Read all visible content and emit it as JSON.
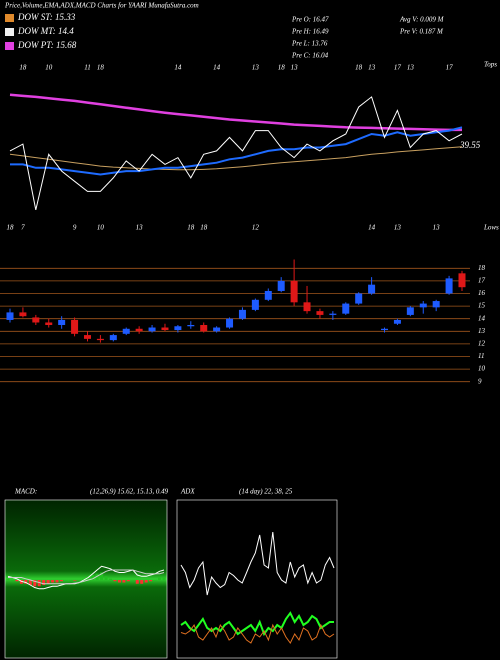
{
  "header": {
    "title": "Price,Volume,EMA,ADX,MACD Charts for YAARI MunafaSutra.com",
    "legend": [
      {
        "label": "DOW ST: 15.33",
        "color": "#e08a2c"
      },
      {
        "label": "DOW MT: 14.4",
        "color": "#f0f0f0"
      },
      {
        "label": "DOW PT: 15.68",
        "color": "#e040e0"
      }
    ],
    "stats": [
      "Pre   O: 16.47",
      "Pre   H: 16.49",
      "Pre   L: 13.76",
      "Pre   C: 16.04",
      "Avg V: 0.009 M",
      "Pre   V: 0.187 M"
    ]
  },
  "chart_data": [
    {
      "type": "line",
      "categories": [
        null,
        "18",
        null,
        "10",
        null,
        null,
        "11",
        "18",
        null,
        null,
        null,
        null,
        null,
        "14",
        null,
        null,
        "14",
        null,
        null,
        "13",
        null,
        "18",
        "13",
        null,
        null,
        null,
        null,
        "18",
        "13",
        null,
        "17",
        "13",
        null,
        null,
        "17",
        null
      ],
      "bottom_categories": [
        "18",
        "7",
        null,
        null,
        null,
        "9",
        null,
        "10",
        null,
        null,
        "13",
        null,
        null,
        null,
        "18",
        "18",
        null,
        null,
        null,
        "12",
        null,
        null,
        null,
        null,
        null,
        null,
        null,
        null,
        "14",
        null,
        "13",
        null,
        null,
        "13",
        null,
        null
      ],
      "top_note": "Tops",
      "bottom_note": "Lows",
      "price_note": "39.55",
      "ylim": [
        20,
        60
      ],
      "series": [
        {
          "color": "#e040e0",
          "width": 2.5,
          "values": [
            55.6,
            55.3,
            55,
            54.6,
            54.2,
            53.8,
            53.3,
            52.8,
            52.3,
            51.8,
            51.3,
            50.8,
            50.3,
            49.9,
            49.5,
            49.1,
            48.7,
            48.3,
            48,
            47.7,
            47.4,
            47.1,
            46.8,
            46.6,
            46.4,
            46.2,
            46,
            45.9,
            45.8,
            45.7,
            45.6,
            45.5,
            45.4,
            45.3,
            45.2,
            45.2
          ]
        },
        {
          "color": "#c8a060",
          "width": 1,
          "values": [
            38,
            37.5,
            37,
            36.5,
            36,
            35.5,
            35,
            34.5,
            34.2,
            34,
            33.8,
            33.6,
            33.5,
            33.4,
            33.4,
            33.5,
            33.7,
            34,
            34.3,
            34.7,
            35.1,
            35.5,
            35.8,
            36.1,
            36.4,
            36.7,
            37,
            37.5,
            38,
            38.3,
            38.7,
            39,
            39.3,
            39.6,
            39.9,
            40.2
          ]
        },
        {
          "color": "#1e6bff",
          "width": 2,
          "values": [
            35,
            35,
            34,
            34,
            33.5,
            33,
            32.5,
            32,
            32.5,
            33,
            33,
            33.5,
            34,
            34,
            34.5,
            35,
            35.5,
            36.5,
            37,
            38,
            39,
            39.5,
            39.5,
            40,
            40,
            40.5,
            41,
            42.5,
            44,
            43.5,
            44.5,
            43.5,
            44,
            44.5,
            45,
            46
          ]
        },
        {
          "color": "#ffffff",
          "width": 1,
          "values": [
            39,
            41,
            21.5,
            38,
            33,
            30,
            27,
            27,
            31,
            36,
            33,
            38,
            35,
            37,
            31,
            38,
            39,
            43,
            39,
            45,
            45,
            40,
            37,
            41,
            39,
            42,
            44,
            52,
            55,
            43,
            51,
            40,
            44,
            45,
            42,
            44
          ]
        }
      ]
    },
    {
      "type": "candlestick",
      "ylim": [
        8.5,
        18.5
      ],
      "yticks": [
        9,
        10,
        11,
        12,
        13,
        14,
        15,
        16,
        17,
        18
      ],
      "grid": true,
      "grid_color": "#a0561c",
      "up_color": "#1e5bff",
      "down_color": "#e01818",
      "open": [
        13.9,
        14.5,
        14.1,
        13.7,
        13.5,
        13.9,
        12.7,
        12.4,
        12.3,
        12.8,
        13.2,
        13.0,
        13.3,
        13.1,
        13.4,
        13.5,
        13.0,
        13.3,
        14.0,
        14.7,
        15.5,
        16.2,
        17.0,
        15.3,
        14.6,
        14.3,
        14.4,
        15.2,
        16.0,
        13.1,
        13.6,
        14.3,
        14.9,
        14.9,
        16.0,
        17.6
      ],
      "high": [
        14.8,
        14.9,
        14.3,
        14.0,
        14.2,
        14.1,
        13.0,
        12.7,
        12.8,
        13.3,
        13.4,
        13.5,
        13.6,
        13.5,
        13.8,
        13.7,
        13.4,
        14.1,
        14.9,
        15.6,
        16.4,
        17.3,
        18.7,
        16.6,
        14.8,
        14.6,
        15.3,
        16.1,
        17.3,
        13.3,
        14.0,
        15.0,
        15.4,
        15.5,
        17.4,
        17.8
      ],
      "low": [
        13.7,
        14.1,
        13.5,
        13.3,
        13.2,
        12.6,
        12.2,
        12.1,
        12.2,
        12.7,
        12.8,
        12.9,
        13.0,
        12.9,
        13.2,
        12.9,
        12.9,
        13.2,
        13.9,
        14.6,
        15.4,
        16.1,
        15.0,
        14.4,
        14.0,
        13.9,
        14.3,
        15.1,
        15.9,
        12.9,
        13.5,
        14.2,
        14.4,
        14.6,
        15.9,
        16.2
      ],
      "close": [
        14.5,
        14.2,
        13.7,
        13.5,
        13.9,
        12.8,
        12.4,
        12.3,
        12.7,
        13.2,
        13.0,
        13.3,
        13.1,
        13.4,
        13.5,
        13.0,
        13.3,
        14.0,
        14.7,
        15.5,
        16.2,
        17.0,
        15.3,
        14.6,
        14.3,
        14.4,
        15.2,
        16.0,
        16.7,
        13.2,
        13.9,
        14.9,
        15.2,
        15.4,
        17.2,
        16.5
      ]
    },
    {
      "type": "macd",
      "title": "MACD:",
      "subtitle": "(12,26,9) 15.62, 15.13, 0.49",
      "ylim": [
        -6,
        6
      ],
      "hist_up_color": "#20c020",
      "hist_down_color": "#ff3030",
      "histogram": [
        0.1,
        0,
        -0.1,
        -0.3,
        -0.3,
        -0.4,
        -0.5,
        -0.5,
        -0.4,
        -0.3,
        -0.2,
        -0.2,
        -0.1,
        0,
        0,
        -0.05,
        0,
        0.1,
        0.2,
        0.4,
        0.5,
        0.6,
        0.3,
        0.1,
        -0.1,
        -0.2,
        -0.2,
        -0.1,
        0,
        -0.3,
        -0.3,
        -0.2,
        -0.1,
        0,
        0.2,
        0.2
      ],
      "series": [
        {
          "color": "#ffffff",
          "values": [
            0.3,
            0.2,
            0.1,
            -0.1,
            -0.2,
            -0.4,
            -0.6,
            -0.7,
            -0.7,
            -0.6,
            -0.5,
            -0.5,
            -0.4,
            -0.3,
            -0.3,
            -0.3,
            -0.2,
            0,
            0.2,
            0.5,
            0.8,
            1.1,
            1.0,
            0.9,
            0.7,
            0.6,
            0.6,
            0.7,
            0.8,
            0.4,
            0.3,
            0.3,
            0.4,
            0.5,
            0.7,
            0.8
          ]
        },
        {
          "color": "#d0d0d0",
          "values": [
            0.2,
            0.2,
            0.2,
            0.2,
            0.1,
            0,
            -0.1,
            -0.2,
            -0.3,
            -0.3,
            -0.3,
            -0.3,
            -0.3,
            -0.3,
            -0.3,
            -0.25,
            -0.2,
            -0.1,
            0,
            0.1,
            0.3,
            0.5,
            0.7,
            0.8,
            0.8,
            0.8,
            0.8,
            0.8,
            0.8,
            0.7,
            0.6,
            0.5,
            0.5,
            0.5,
            0.5,
            0.6
          ]
        }
      ]
    },
    {
      "type": "line",
      "title": "ADX",
      "subtitle": "(14 day) 22, 38, 25",
      "ylim": [
        0,
        100
      ],
      "series": [
        {
          "color": "#ffffff",
          "width": 1,
          "values": [
            60,
            55,
            45,
            50,
            58,
            62,
            40,
            52,
            48,
            45,
            47,
            55,
            53,
            50,
            48,
            55,
            62,
            68,
            80,
            60,
            58,
            82,
            55,
            50,
            48,
            62,
            52,
            58,
            60,
            48,
            55,
            48,
            50,
            60,
            65,
            58
          ]
        },
        {
          "color": "#20ff20",
          "width": 2,
          "values": [
            20,
            22,
            18,
            16,
            20,
            24,
            18,
            16,
            18,
            16,
            20,
            22,
            18,
            14,
            16,
            18,
            20,
            16,
            22,
            14,
            18,
            16,
            20,
            18,
            24,
            28,
            22,
            26,
            20,
            22,
            26,
            24,
            18,
            20,
            22,
            22
          ]
        },
        {
          "color": "#e07020",
          "width": 1,
          "values": [
            15,
            14,
            16,
            20,
            12,
            10,
            14,
            18,
            12,
            20,
            16,
            10,
            12,
            18,
            14,
            10,
            8,
            14,
            12,
            16,
            10,
            20,
            14,
            18,
            12,
            8,
            14,
            10,
            18,
            16,
            10,
            12,
            20,
            14,
            12,
            14
          ]
        }
      ]
    }
  ]
}
